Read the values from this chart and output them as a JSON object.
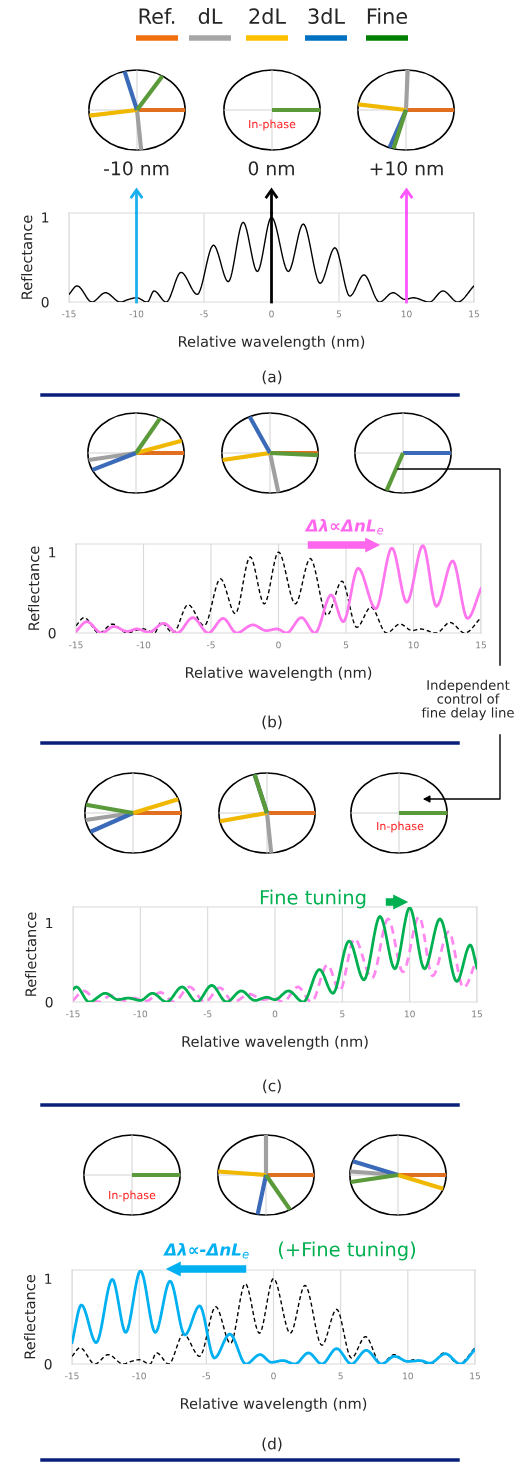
{
  "chart_data": [
    {
      "type": "line",
      "xlabel": "Relative wavelength (nm)",
      "ylabel": "Reflectance",
      "xlim": [
        -15,
        15
      ],
      "xticks": [
        -15,
        -10,
        -5,
        0,
        5,
        10,
        15
      ],
      "ylim": [
        0,
        1.05
      ],
      "yticks": [
        0,
        1
      ],
      "grid": "x",
      "series": [
        {
          "color": "#000000",
          "line_style": "solid",
          "x": [
            -15,
            -14.4,
            -13.3,
            -12.3,
            -11.2,
            -10.6,
            -10.0,
            -9.2,
            -8.7,
            -7.8,
            -6.7,
            -5.5,
            -4.3,
            -3.2,
            -2.1,
            -1.05,
            0,
            1.25,
            2.35,
            3.6,
            4.7,
            5.8,
            6.85,
            8.0,
            9.0,
            9.9,
            10.5,
            11.7,
            12.7,
            13.8,
            15
          ],
          "values": [
            0.09,
            0.19,
            0,
            0.11,
            0,
            0.03,
            0.05,
            0,
            0.13,
            0,
            0.35,
            0.09,
            0.67,
            0.24,
            0.94,
            0.36,
            1.0,
            0.36,
            0.92,
            0.22,
            0.64,
            0.07,
            0.32,
            0,
            0.11,
            0.03,
            0.05,
            0,
            0.13,
            0,
            0.19
          ]
        }
      ],
      "ref_lines": [
        {
          "axis": "x",
          "value": -10,
          "label": "-10 nm",
          "color": "#1ab0f0"
        },
        {
          "axis": "x",
          "value": 0,
          "label": "0 nm",
          "color": "#000000"
        },
        {
          "axis": "x",
          "value": 10,
          "label": "+10 nm",
          "color": "#ff55ff"
        }
      ],
      "annotations": [
        "Ref.",
        "dL",
        "2dL",
        "3dL",
        "Fine",
        "In-phase",
        "(a)"
      ]
    },
    {
      "type": "line",
      "xlabel": "Relative wavelength (nm)",
      "ylabel": "Reflectance",
      "xlim": [
        -15,
        15
      ],
      "xticks": [
        -15,
        -10,
        -5,
        0,
        5,
        10,
        15
      ],
      "ylim": [
        0,
        1.1
      ],
      "yticks": [
        0,
        1
      ],
      "grid": "x",
      "series": [
        {
          "color": "#000000",
          "line_style": "dashed",
          "x": [
            -15,
            -14.4,
            -13.3,
            -12.3,
            -11.2,
            -10.6,
            -10.0,
            -9.2,
            -8.7,
            -7.8,
            -6.7,
            -5.5,
            -4.3,
            -3.2,
            -2.1,
            -1.05,
            0,
            1.25,
            2.35,
            3.6,
            4.7,
            5.8,
            6.85,
            8.0,
            9.0,
            9.9,
            10.5,
            11.7,
            12.7,
            13.8,
            15
          ],
          "values": [
            0.09,
            0.19,
            0,
            0.11,
            0,
            0.03,
            0.05,
            0,
            0.13,
            0,
            0.35,
            0.09,
            0.67,
            0.24,
            0.94,
            0.36,
            1.0,
            0.36,
            0.92,
            0.22,
            0.64,
            0.07,
            0.32,
            0,
            0.11,
            0.03,
            0.05,
            0,
            0.13,
            0,
            0.19
          ]
        },
        {
          "color": "#ff77ee",
          "line_style": "solid",
          "x": [
            -15,
            -14.2,
            -13.1,
            -12.2,
            -11.2,
            -10.5,
            -9.6,
            -8.5,
            -7.5,
            -6.35,
            -5.2,
            -4.1,
            -3.1,
            -1.9,
            -0.9,
            -0.1,
            0.6,
            1.7,
            2.7,
            3.9,
            4.8,
            5.9,
            7.2,
            8.4,
            9.5,
            10.7,
            11.7,
            12.9,
            14.0,
            15
          ],
          "values": [
            0.02,
            0.14,
            0,
            0.08,
            0.02,
            0.05,
            0.01,
            0.12,
            0,
            0.19,
            0,
            0.18,
            0,
            0.1,
            0.03,
            0.05,
            0,
            0.19,
            0,
            0.47,
            0.14,
            0.8,
            0.3,
            1.05,
            0.38,
            1.08,
            0.33,
            0.89,
            0.18,
            0.55
          ]
        }
      ],
      "annotations": [
        "Δλ∝ΔnL$_{e}$",
        "Independent\ncontrol of\nfine delay line",
        "(b)"
      ]
    },
    {
      "type": "line",
      "xlabel": "Relative wavelength (nm)",
      "ylabel": "Reflectance",
      "xlim": [
        -15,
        15
      ],
      "xticks": [
        -15,
        -10,
        -5,
        0,
        5,
        10,
        15
      ],
      "ylim": [
        0,
        1.2
      ],
      "yticks": [
        0,
        1
      ],
      "grid": "x",
      "series": [
        {
          "color": "#ff88f0",
          "line_style": "dashed",
          "x": [
            -15,
            -14.2,
            -13.1,
            -12.2,
            -11.2,
            -10.5,
            -9.6,
            -8.5,
            -7.5,
            -6.35,
            -5.2,
            -4.1,
            -3.1,
            -1.9,
            -0.9,
            -0.1,
            0.6,
            1.7,
            2.7,
            3.9,
            4.8,
            5.9,
            7.2,
            8.4,
            9.5,
            10.7,
            11.7,
            12.9,
            14.0,
            15
          ],
          "values": [
            0.02,
            0.14,
            0,
            0.08,
            0.02,
            0.05,
            0.01,
            0.12,
            0,
            0.19,
            0,
            0.18,
            0,
            0.1,
            0.03,
            0.05,
            0,
            0.19,
            0,
            0.47,
            0.14,
            0.8,
            0.3,
            1.05,
            0.38,
            1.08,
            0.33,
            0.89,
            0.18,
            0.55
          ]
        },
        {
          "color": "#00b050",
          "line_style": "solid",
          "x": [
            -15,
            -14.75,
            -13.8,
            -12.6,
            -11.65,
            -10.9,
            -10.0,
            -9.1,
            -8.05,
            -6.9,
            -5.8,
            -4.7,
            -3.6,
            -2.5,
            -1.5,
            -0.6,
            0.0,
            1.0,
            2.1,
            3.3,
            4.3,
            5.5,
            6.6,
            7.8,
            8.9,
            10.0,
            11.1,
            12.25,
            13.5,
            14.5,
            15
          ],
          "values": [
            0.16,
            0.19,
            0,
            0.11,
            0.03,
            0.05,
            0.02,
            0.11,
            0,
            0.19,
            0,
            0.21,
            0,
            0.14,
            0.02,
            0.06,
            0.03,
            0.14,
            0,
            0.41,
            0.11,
            0.77,
            0.28,
            1.08,
            0.42,
            1.19,
            0.42,
            1.05,
            0.26,
            0.72,
            0.43
          ]
        }
      ],
      "annotations": [
        "Fine tuning",
        "In-phase",
        "(c)"
      ]
    },
    {
      "type": "line",
      "xlabel": "Relative wavelength (nm)",
      "ylabel": "Reflectance",
      "xlim": [
        -15,
        15
      ],
      "xticks": [
        -15,
        -10,
        -5,
        0,
        5,
        10,
        15
      ],
      "ylim": [
        0,
        1.1
      ],
      "yticks": [
        0,
        1
      ],
      "grid": "x",
      "series": [
        {
          "color": "#000000",
          "line_style": "dashed",
          "x": [
            -15,
            -14.4,
            -13.3,
            -12.3,
            -11.2,
            -10.6,
            -10.0,
            -9.2,
            -8.7,
            -7.8,
            -6.7,
            -5.5,
            -4.3,
            -3.2,
            -2.1,
            -1.05,
            0,
            1.25,
            2.35,
            3.6,
            4.7,
            5.8,
            6.85,
            8.0,
            9.0,
            9.9,
            10.5,
            11.7,
            12.7,
            13.8,
            15
          ],
          "values": [
            0.09,
            0.19,
            0,
            0.11,
            0,
            0.03,
            0.05,
            0,
            0.13,
            0,
            0.35,
            0.09,
            0.67,
            0.24,
            0.94,
            0.36,
            1.0,
            0.36,
            0.92,
            0.22,
            0.64,
            0.07,
            0.32,
            0,
            0.11,
            0.03,
            0.05,
            0,
            0.13,
            0,
            0.19
          ]
        },
        {
          "color": "#00b0f0",
          "line_style": "solid",
          "x": [
            -15,
            -14.3,
            -13.2,
            -12.0,
            -11.0,
            -9.9,
            -8.8,
            -7.7,
            -6.6,
            -5.5,
            -4.4,
            -3.25,
            -2.05,
            -1.0,
            -0.15,
            0.7,
            1.6,
            2.6,
            3.6,
            4.7,
            5.8,
            6.9,
            8.05,
            9.0,
            10.0,
            10.9,
            11.65,
            12.8,
            13.9,
            15
          ],
          "values": [
            0.25,
            0.69,
            0.25,
            0.99,
            0.37,
            1.09,
            0.37,
            0.97,
            0.34,
            0.68,
            0.07,
            0.35,
            0,
            0.11,
            0.02,
            0.04,
            0,
            0.13,
            0,
            0.18,
            0,
            0.16,
            0,
            0.09,
            0.03,
            0.04,
            0.01,
            0.12,
            0,
            0.17
          ]
        }
      ],
      "annotations": [
        "In-phase",
        "Δλ∝-ΔnL$_{e}$",
        "(+Fine tuning)",
        "(d)"
      ]
    }
  ]
}
